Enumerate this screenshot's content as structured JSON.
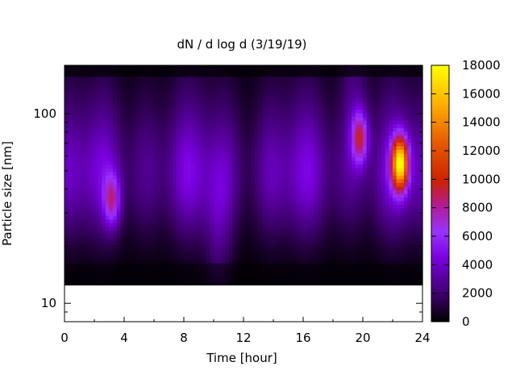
{
  "chart_data": {
    "type": "heatmap",
    "title": "dN / d log d (3/19/19)",
    "xlabel": "Time [hour]",
    "ylabel": "Particle size [nm]",
    "xlim": [
      0,
      24
    ],
    "ylim": [
      8,
      180
    ],
    "y_scale": "log",
    "x_ticks": [
      0,
      4,
      8,
      12,
      16,
      20,
      24
    ],
    "x_tick_labels": [
      "0",
      "4",
      "8",
      "12",
      "16",
      "20",
      "24"
    ],
    "y_ticks": [
      10,
      100
    ],
    "y_tick_labels": [
      "10",
      "100"
    ],
    "colorbar": {
      "min": 0,
      "max": 18000,
      "ticks": [
        0,
        2000,
        4000,
        6000,
        8000,
        10000,
        12000,
        14000,
        16000,
        18000
      ],
      "tick_labels": [
        "0",
        "2000",
        "4000",
        "6000",
        "8000",
        "10000",
        "12000",
        "14000",
        "16000",
        "18000"
      ],
      "colormap": "black-purple-red-yellow"
    },
    "data_extent": {
      "time": [
        0,
        24
      ],
      "size_nm": [
        12.5,
        180
      ]
    },
    "hotspots": [
      {
        "time": 3.2,
        "size_nm": 35,
        "value": 8500
      },
      {
        "time": 19.8,
        "size_nm": 75,
        "value": 10000
      },
      {
        "time": 22.5,
        "size_nm": 55,
        "value": 17500
      }
    ],
    "grid": false,
    "legend": "colorbar-right"
  },
  "colors": {
    "low": "#000000",
    "mid_low": "#6a00c8",
    "mid": "#9a2ff0",
    "mid_high": "#c4002c",
    "high": "#ff9a00",
    "max": "#ffff00"
  }
}
